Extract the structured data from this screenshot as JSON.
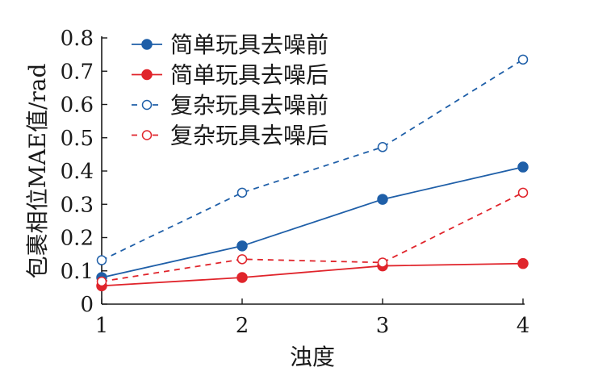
{
  "chart_data": {
    "type": "line",
    "xlabel": "浊度",
    "ylabel": "包裹相位MAE值/rad",
    "x": [
      1,
      2,
      3,
      4
    ],
    "xlim": [
      1,
      4
    ],
    "ylim": [
      0,
      0.8
    ],
    "xticks": [
      "1",
      "2",
      "3",
      "4"
    ],
    "yticks": [
      "0",
      "0.1",
      "0.2",
      "0.3",
      "0.4",
      "0.5",
      "0.6",
      "0.7",
      "0.8"
    ],
    "grid": false,
    "legend_position": "top-left",
    "series": [
      {
        "name": "简单玩具去噪前",
        "values": [
          0.08,
          0.175,
          0.315,
          0.412
        ],
        "color": "#1f5fa8",
        "line": "solid",
        "marker": "filled"
      },
      {
        "name": "简单玩具去噪后",
        "values": [
          0.055,
          0.08,
          0.115,
          0.122
        ],
        "color": "#e0242b",
        "line": "solid",
        "marker": "filled"
      },
      {
        "name": "复杂玩具去噪前",
        "values": [
          0.132,
          0.335,
          0.472,
          0.735
        ],
        "color": "#1f5fa8",
        "line": "dashed",
        "marker": "open"
      },
      {
        "name": "复杂玩具去噪后",
        "values": [
          0.068,
          0.135,
          0.125,
          0.335
        ],
        "color": "#e0242b",
        "line": "dashed",
        "marker": "open"
      }
    ]
  }
}
